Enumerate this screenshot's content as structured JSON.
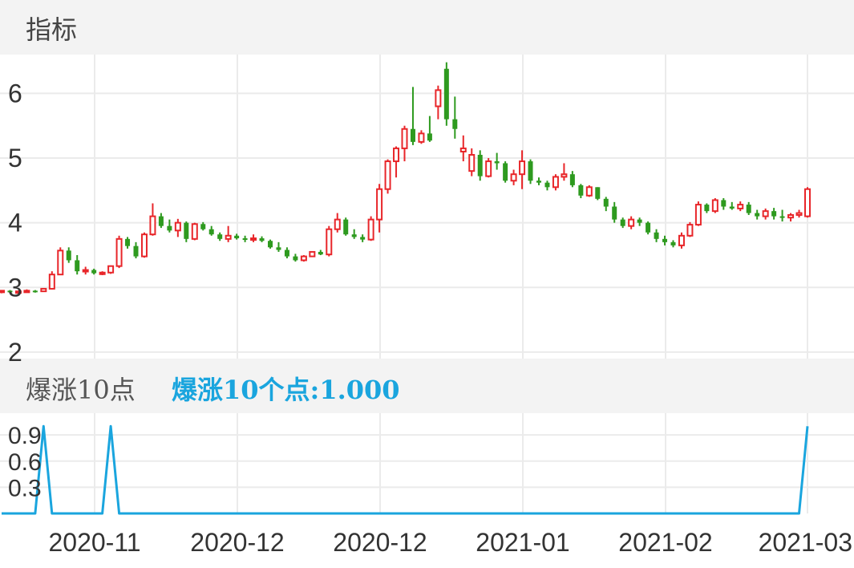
{
  "panel_title": "指标",
  "indicator": {
    "name": "爆涨10点",
    "legend_label": "爆涨10个点:1.000"
  },
  "colors": {
    "up": "#e8262a",
    "down": "#2e9a1f",
    "indicator_line": "#1aa5de",
    "grid": "#ebebeb"
  },
  "chart_data": [
    {
      "type": "candlestick",
      "title": "",
      "y_ticks": [
        "6",
        "5",
        "4",
        "3",
        "2"
      ],
      "ylim": [
        1.9,
        6.6
      ],
      "x_ticks": [
        "2020-11",
        "2020-12",
        "2020-12",
        "2021-01",
        "2021-02",
        "2021-03"
      ],
      "grid": true,
      "candles": [
        [
          2.94,
          2.96,
          2.91,
          2.95
        ],
        [
          2.95,
          2.96,
          2.92,
          2.93
        ],
        [
          2.93,
          2.95,
          2.91,
          2.94
        ],
        [
          2.94,
          2.97,
          2.93,
          2.95
        ],
        [
          2.95,
          2.96,
          2.92,
          2.94
        ],
        [
          2.94,
          2.99,
          2.93,
          2.98
        ],
        [
          2.98,
          3.25,
          2.97,
          3.2
        ],
        [
          3.2,
          3.62,
          3.19,
          3.57
        ],
        [
          3.57,
          3.62,
          3.38,
          3.42
        ],
        [
          3.42,
          3.5,
          3.2,
          3.25
        ],
        [
          3.25,
          3.32,
          3.2,
          3.27
        ],
        [
          3.27,
          3.29,
          3.2,
          3.22
        ],
        [
          3.22,
          3.25,
          3.19,
          3.23
        ],
        [
          3.23,
          3.34,
          3.21,
          3.33
        ],
        [
          3.33,
          3.8,
          3.3,
          3.75
        ],
        [
          3.75,
          3.78,
          3.6,
          3.64
        ],
        [
          3.64,
          3.7,
          3.45,
          3.48
        ],
        [
          3.48,
          3.85,
          3.46,
          3.82
        ],
        [
          3.82,
          4.3,
          3.8,
          4.1
        ],
        [
          4.1,
          4.15,
          3.92,
          3.95
        ],
        [
          3.95,
          4.05,
          3.85,
          3.88
        ],
        [
          3.88,
          4.06,
          3.78,
          4.0
        ],
        [
          4.0,
          4.02,
          3.7,
          3.75
        ],
        [
          3.75,
          4.0,
          3.73,
          3.98
        ],
        [
          3.98,
          4.01,
          3.88,
          3.9
        ],
        [
          3.9,
          3.95,
          3.8,
          3.82
        ],
        [
          3.82,
          3.85,
          3.72,
          3.75
        ],
        [
          3.75,
          3.95,
          3.7,
          3.8
        ],
        [
          3.8,
          3.83,
          3.74,
          3.76
        ],
        [
          3.76,
          3.8,
          3.7,
          3.74
        ],
        [
          3.74,
          3.82,
          3.7,
          3.76
        ],
        [
          3.76,
          3.79,
          3.7,
          3.72
        ],
        [
          3.72,
          3.74,
          3.6,
          3.62
        ],
        [
          3.62,
          3.7,
          3.55,
          3.58
        ],
        [
          3.58,
          3.62,
          3.45,
          3.48
        ],
        [
          3.48,
          3.52,
          3.4,
          3.42
        ],
        [
          3.42,
          3.5,
          3.4,
          3.48
        ],
        [
          3.48,
          3.56,
          3.47,
          3.55
        ],
        [
          3.55,
          3.58,
          3.5,
          3.51
        ],
        [
          3.51,
          3.95,
          3.48,
          3.9
        ],
        [
          3.9,
          4.15,
          3.85,
          4.05
        ],
        [
          4.05,
          4.08,
          3.8,
          3.82
        ],
        [
          3.82,
          3.9,
          3.75,
          3.78
        ],
        [
          3.78,
          3.82,
          3.7,
          3.74
        ],
        [
          3.74,
          4.1,
          3.72,
          4.05
        ],
        [
          4.05,
          4.6,
          3.85,
          4.52
        ],
        [
          4.52,
          4.98,
          4.45,
          4.95
        ],
        [
          4.95,
          5.18,
          4.7,
          5.15
        ],
        [
          5.15,
          5.5,
          4.95,
          5.45
        ],
        [
          5.45,
          6.1,
          5.2,
          5.25
        ],
        [
          5.25,
          5.43,
          5.22,
          5.38
        ],
        [
          5.38,
          5.65,
          5.25,
          5.27
        ],
        [
          5.8,
          6.12,
          5.6,
          6.05
        ],
        [
          6.38,
          6.48,
          5.5,
          5.6
        ],
        [
          5.6,
          5.95,
          5.3,
          5.45
        ],
        [
          5.1,
          5.35,
          4.95,
          5.15
        ],
        [
          4.8,
          5.15,
          4.72,
          5.05
        ],
        [
          5.05,
          5.12,
          4.65,
          4.72
        ],
        [
          4.72,
          5.0,
          4.7,
          4.95
        ],
        [
          4.95,
          5.08,
          4.82,
          4.92
        ],
        [
          4.92,
          4.95,
          4.62,
          4.65
        ],
        [
          4.65,
          4.82,
          4.58,
          4.75
        ],
        [
          4.75,
          5.12,
          4.52,
          4.95
        ],
        [
          4.95,
          4.98,
          4.6,
          4.65
        ],
        [
          4.65,
          4.7,
          4.58,
          4.62
        ],
        [
          4.62,
          4.65,
          4.5,
          4.55
        ],
        [
          4.55,
          4.75,
          4.5,
          4.71
        ],
        [
          4.71,
          4.92,
          4.65,
          4.75
        ],
        [
          4.75,
          4.8,
          4.55,
          4.58
        ],
        [
          4.58,
          4.6,
          4.38,
          4.42
        ],
        [
          4.42,
          4.58,
          4.4,
          4.55
        ],
        [
          4.55,
          4.55,
          4.35,
          4.37
        ],
        [
          4.37,
          4.4,
          4.18,
          4.25
        ],
        [
          4.25,
          4.32,
          4.0,
          4.05
        ],
        [
          4.05,
          4.08,
          3.92,
          3.95
        ],
        [
          3.95,
          4.1,
          3.9,
          4.05
        ],
        [
          4.05,
          4.08,
          3.95,
          4.0
        ],
        [
          4.0,
          4.02,
          3.82,
          3.85
        ],
        [
          3.85,
          3.9,
          3.7,
          3.75
        ],
        [
          3.75,
          3.8,
          3.65,
          3.7
        ],
        [
          3.7,
          3.73,
          3.62,
          3.65
        ],
        [
          3.65,
          3.85,
          3.6,
          3.8
        ],
        [
          3.8,
          4.01,
          3.78,
          3.97
        ],
        [
          3.97,
          4.33,
          3.95,
          4.28
        ],
        [
          4.28,
          4.3,
          4.15,
          4.18
        ],
        [
          4.18,
          4.38,
          4.15,
          4.35
        ],
        [
          4.35,
          4.38,
          4.2,
          4.25
        ],
        [
          4.25,
          4.32,
          4.2,
          4.22
        ],
        [
          4.22,
          4.33,
          4.18,
          4.28
        ],
        [
          4.28,
          4.32,
          4.12,
          4.15
        ],
        [
          4.15,
          4.2,
          4.05,
          4.1
        ],
        [
          4.1,
          4.22,
          4.05,
          4.18
        ],
        [
          4.18,
          4.23,
          4.05,
          4.1
        ],
        [
          4.1,
          4.2,
          4.02,
          4.08
        ],
        [
          4.08,
          4.15,
          4.02,
          4.12
        ],
        [
          4.12,
          4.2,
          4.08,
          4.15
        ],
        [
          4.1,
          4.55,
          4.08,
          4.52
        ]
      ]
    },
    {
      "type": "line",
      "name": "爆涨10个点",
      "y_ticks": [
        "0.9",
        "0.6",
        "0.3"
      ],
      "ylim": [
        0,
        1.15
      ],
      "values": [
        0,
        0,
        0,
        0,
        0,
        1,
        0,
        0,
        0,
        0,
        0,
        0,
        0,
        1,
        0,
        0,
        0,
        0,
        0,
        0,
        0,
        0,
        0,
        0,
        0,
        0,
        0,
        0,
        0,
        0,
        0,
        0,
        0,
        0,
        0,
        0,
        0,
        0,
        0,
        0,
        0,
        0,
        0,
        0,
        0,
        0,
        0,
        0,
        0,
        0,
        0,
        0,
        0,
        0,
        0,
        0,
        0,
        0,
        0,
        0,
        0,
        0,
        0,
        0,
        0,
        0,
        0,
        0,
        0,
        0,
        0,
        0,
        0,
        0,
        0,
        0,
        0,
        0,
        0,
        0,
        0,
        0,
        0,
        0,
        0,
        0,
        0,
        0,
        0,
        0,
        0,
        0,
        0,
        0,
        0,
        0,
        1
      ]
    }
  ]
}
